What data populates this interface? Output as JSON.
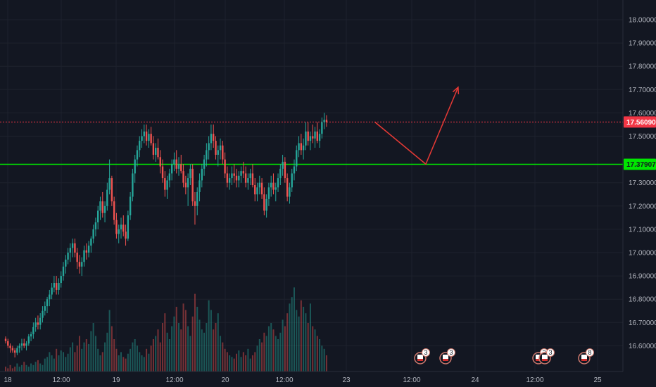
{
  "chart_data": {
    "type": "candlestick",
    "y_axis": {
      "ticks": [
        "18.00000",
        "17.90000",
        "17.80000",
        "17.70000",
        "17.60000",
        "17.50000",
        "17.30000",
        "17.20000",
        "17.10000",
        "17.00000",
        "16.90000",
        "16.80000",
        "16.70000",
        "16.60000"
      ],
      "range": [
        16.54,
        18.05
      ],
      "position": "right"
    },
    "x_axis": {
      "ticks": [
        "18",
        "12:00",
        "19",
        "12:00",
        "20",
        "12:00",
        "23",
        "12:00",
        "24",
        "12:00",
        "25"
      ]
    },
    "price_labels": [
      {
        "value": "17.56090",
        "price": 17.5609,
        "color": "#f23645"
      },
      {
        "value": "17.37907",
        "price": 17.37907,
        "color": "#00e600"
      }
    ],
    "horizontal_lines": [
      {
        "price": 17.5609,
        "style": "dotted",
        "color": "#f23645"
      },
      {
        "price": 17.37907,
        "style": "solid",
        "color": "#00e600"
      }
    ],
    "projection_path": [
      {
        "slot": 160,
        "price": 17.56
      },
      {
        "slot": 182,
        "price": 17.38
      },
      {
        "slot": 196,
        "price": 17.71
      }
    ],
    "candles_approx": [
      [
        0,
        16.63,
        16.64,
        16.61,
        16.62
      ],
      [
        1,
        16.62,
        16.63,
        16.59,
        16.6
      ],
      [
        2,
        16.6,
        16.61,
        16.57,
        16.59
      ],
      [
        3,
        16.59,
        16.6,
        16.57,
        16.58
      ],
      [
        4,
        16.58,
        16.59,
        16.55,
        16.57
      ],
      [
        5,
        16.57,
        16.6,
        16.56,
        16.59
      ],
      [
        6,
        16.59,
        16.61,
        16.57,
        16.6
      ],
      [
        7,
        16.6,
        16.63,
        16.58,
        16.61
      ],
      [
        8,
        16.61,
        16.63,
        16.59,
        16.6
      ],
      [
        9,
        16.6,
        16.62,
        16.58,
        16.61
      ],
      [
        10,
        16.61,
        16.65,
        16.6,
        16.64
      ],
      [
        11,
        16.64,
        16.66,
        16.62,
        16.65
      ],
      [
        12,
        16.65,
        16.7,
        16.63,
        16.68
      ],
      [
        13,
        16.68,
        16.72,
        16.66,
        16.7
      ],
      [
        14,
        16.7,
        16.73,
        16.67,
        16.69
      ],
      [
        15,
        16.69,
        16.74,
        16.67,
        16.72
      ],
      [
        16,
        16.72,
        16.77,
        16.7,
        16.75
      ],
      [
        17,
        16.75,
        16.79,
        16.73,
        16.77
      ],
      [
        18,
        16.77,
        16.81,
        16.74,
        16.8
      ],
      [
        19,
        16.8,
        16.84,
        16.77,
        16.82
      ],
      [
        20,
        16.82,
        16.87,
        16.8,
        16.85
      ],
      [
        21,
        16.85,
        16.9,
        16.83,
        16.87
      ],
      [
        22,
        16.87,
        16.9,
        16.82,
        16.84
      ],
      [
        23,
        16.84,
        16.89,
        16.82,
        16.87
      ],
      [
        24,
        16.87,
        16.92,
        16.85,
        16.9
      ],
      [
        25,
        16.9,
        16.96,
        16.88,
        16.94
      ],
      [
        26,
        16.94,
        16.99,
        16.91,
        16.97
      ],
      [
        27,
        16.97,
        17.02,
        16.95,
        17.0
      ],
      [
        28,
        17.0,
        17.04,
        16.96,
        17.02
      ],
      [
        29,
        17.02,
        17.06,
        16.98,
        17.04
      ],
      [
        30,
        17.04,
        17.06,
        16.98,
        17.0
      ],
      [
        31,
        17.0,
        17.02,
        16.93,
        16.96
      ],
      [
        32,
        16.96,
        16.99,
        16.91,
        16.94
      ],
      [
        33,
        16.94,
        16.98,
        16.9,
        16.96
      ],
      [
        34,
        16.96,
        17.03,
        16.94,
        17.01
      ],
      [
        35,
        17.01,
        17.04,
        16.97,
        17.0
      ],
      [
        36,
        17.0,
        17.05,
        16.98,
        17.03
      ],
      [
        37,
        17.03,
        17.07,
        17.0,
        17.06
      ],
      [
        38,
        17.06,
        17.12,
        17.04,
        17.1
      ],
      [
        39,
        17.1,
        17.15,
        17.07,
        17.13
      ],
      [
        40,
        17.13,
        17.2,
        17.1,
        17.18
      ],
      [
        41,
        17.18,
        17.24,
        17.14,
        17.22
      ],
      [
        42,
        17.22,
        17.26,
        17.15,
        17.17
      ],
      [
        43,
        17.17,
        17.22,
        17.13,
        17.2
      ],
      [
        44,
        17.2,
        17.3,
        17.18,
        17.27
      ],
      [
        45,
        17.27,
        17.4,
        17.25,
        17.32
      ],
      [
        46,
        17.32,
        17.33,
        17.2,
        17.22
      ],
      [
        47,
        17.22,
        17.24,
        17.12,
        17.14
      ],
      [
        48,
        17.14,
        17.17,
        17.06,
        17.08
      ],
      [
        49,
        17.08,
        17.12,
        17.04,
        17.1
      ],
      [
        50,
        17.1,
        17.15,
        17.06,
        17.12
      ],
      [
        51,
        17.12,
        17.16,
        17.07,
        17.09
      ],
      [
        52,
        17.09,
        17.12,
        17.03,
        17.06
      ],
      [
        53,
        17.06,
        17.18,
        17.05,
        17.16
      ],
      [
        54,
        17.16,
        17.26,
        17.14,
        17.24
      ],
      [
        55,
        17.24,
        17.36,
        17.22,
        17.34
      ],
      [
        56,
        17.34,
        17.42,
        17.3,
        17.4
      ],
      [
        57,
        17.4,
        17.46,
        17.37,
        17.44
      ],
      [
        58,
        17.44,
        17.5,
        17.41,
        17.48
      ],
      [
        59,
        17.48,
        17.53,
        17.45,
        17.5
      ],
      [
        60,
        17.5,
        17.55,
        17.47,
        17.52
      ],
      [
        61,
        17.52,
        17.55,
        17.46,
        17.48
      ],
      [
        62,
        17.48,
        17.53,
        17.45,
        17.51
      ],
      [
        63,
        17.51,
        17.54,
        17.46,
        17.47
      ],
      [
        64,
        17.47,
        17.5,
        17.4,
        17.42
      ],
      [
        65,
        17.42,
        17.47,
        17.39,
        17.45
      ],
      [
        66,
        17.45,
        17.49,
        17.4,
        17.41
      ],
      [
        67,
        17.41,
        17.44,
        17.34,
        17.37
      ],
      [
        68,
        17.37,
        17.4,
        17.3,
        17.32
      ],
      [
        69,
        17.32,
        17.35,
        17.24,
        17.27
      ],
      [
        70,
        17.27,
        17.33,
        17.23,
        17.31
      ],
      [
        71,
        17.31,
        17.36,
        17.28,
        17.34
      ],
      [
        72,
        17.34,
        17.4,
        17.31,
        17.38
      ],
      [
        73,
        17.38,
        17.43,
        17.35,
        17.4
      ],
      [
        74,
        17.4,
        17.44,
        17.34,
        17.36
      ],
      [
        75,
        17.36,
        17.41,
        17.33,
        17.38
      ],
      [
        76,
        17.38,
        17.42,
        17.34,
        17.35
      ],
      [
        77,
        17.35,
        17.38,
        17.28,
        17.3
      ],
      [
        78,
        17.3,
        17.33,
        17.25,
        17.28
      ],
      [
        79,
        17.28,
        17.34,
        17.2,
        17.32
      ],
      [
        80,
        17.32,
        17.38,
        17.29,
        17.36
      ],
      [
        81,
        17.36,
        17.38,
        17.2,
        17.22
      ],
      [
        82,
        17.22,
        17.26,
        17.12,
        17.2
      ],
      [
        83,
        17.2,
        17.28,
        17.16,
        17.26
      ],
      [
        84,
        17.26,
        17.34,
        17.22,
        17.31
      ],
      [
        85,
        17.31,
        17.38,
        17.28,
        17.36
      ],
      [
        86,
        17.36,
        17.42,
        17.33,
        17.4
      ],
      [
        87,
        17.4,
        17.47,
        17.37,
        17.44
      ],
      [
        88,
        17.44,
        17.5,
        17.4,
        17.47
      ],
      [
        89,
        17.47,
        17.55,
        17.44,
        17.51
      ],
      [
        90,
        17.51,
        17.55,
        17.45,
        17.48
      ],
      [
        91,
        17.48,
        17.5,
        17.4,
        17.42
      ],
      [
        92,
        17.42,
        17.46,
        17.37,
        17.44
      ],
      [
        93,
        17.44,
        17.49,
        17.4,
        17.46
      ],
      [
        94,
        17.46,
        17.48,
        17.38,
        17.4
      ],
      [
        95,
        17.4,
        17.43,
        17.32,
        17.34
      ],
      [
        96,
        17.34,
        17.37,
        17.28,
        17.3
      ],
      [
        97,
        17.3,
        17.34,
        17.27,
        17.32
      ],
      [
        98,
        17.32,
        17.37,
        17.29,
        17.34
      ],
      [
        99,
        17.34,
        17.38,
        17.3,
        17.33
      ],
      [
        100,
        17.33,
        17.36,
        17.28,
        17.31
      ],
      [
        101,
        17.31,
        17.35,
        17.28,
        17.33
      ],
      [
        102,
        17.33,
        17.37,
        17.3,
        17.35
      ],
      [
        103,
        17.35,
        17.39,
        17.32,
        17.34
      ],
      [
        104,
        17.34,
        17.37,
        17.28,
        17.3
      ],
      [
        105,
        17.3,
        17.34,
        17.27,
        17.32
      ],
      [
        106,
        17.32,
        17.36,
        17.29,
        17.34
      ],
      [
        107,
        17.34,
        17.38,
        17.28,
        17.29
      ],
      [
        108,
        17.29,
        17.32,
        17.22,
        17.25
      ],
      [
        109,
        17.25,
        17.3,
        17.22,
        17.28
      ],
      [
        110,
        17.28,
        17.33,
        17.25,
        17.3
      ],
      [
        111,
        17.3,
        17.32,
        17.23,
        17.25
      ],
      [
        112,
        17.25,
        17.28,
        17.16,
        17.18
      ],
      [
        113,
        17.18,
        17.25,
        17.15,
        17.23
      ],
      [
        114,
        17.23,
        17.3,
        17.2,
        17.28
      ],
      [
        115,
        17.28,
        17.33,
        17.24,
        17.3
      ],
      [
        116,
        17.3,
        17.34,
        17.25,
        17.27
      ],
      [
        117,
        17.27,
        17.3,
        17.22,
        17.28
      ],
      [
        118,
        17.28,
        17.34,
        17.26,
        17.32
      ],
      [
        119,
        17.32,
        17.38,
        17.29,
        17.36
      ],
      [
        120,
        17.36,
        17.42,
        17.33,
        17.39
      ],
      [
        121,
        17.39,
        17.41,
        17.3,
        17.32
      ],
      [
        122,
        17.32,
        17.34,
        17.22,
        17.24
      ],
      [
        123,
        17.24,
        17.3,
        17.21,
        17.28
      ],
      [
        124,
        17.28,
        17.36,
        17.26,
        17.34
      ],
      [
        125,
        17.34,
        17.4,
        17.31,
        17.37
      ],
      [
        126,
        17.37,
        17.46,
        17.35,
        17.44
      ],
      [
        127,
        17.44,
        17.5,
        17.41,
        17.47
      ],
      [
        128,
        17.47,
        17.51,
        17.42,
        17.44
      ],
      [
        129,
        17.44,
        17.49,
        17.4,
        17.46
      ],
      [
        130,
        17.46,
        17.56,
        17.44,
        17.52
      ],
      [
        131,
        17.52,
        17.56,
        17.46,
        17.48
      ],
      [
        132,
        17.48,
        17.52,
        17.44,
        17.5
      ],
      [
        133,
        17.5,
        17.55,
        17.47,
        17.49
      ],
      [
        134,
        17.49,
        17.54,
        17.45,
        17.52
      ],
      [
        135,
        17.52,
        17.56,
        17.47,
        17.48
      ],
      [
        136,
        17.48,
        17.53,
        17.45,
        17.51
      ],
      [
        137,
        17.51,
        17.58,
        17.49,
        17.56
      ],
      [
        138,
        17.56,
        17.6,
        17.53,
        17.57
      ],
      [
        139,
        17.57,
        17.59,
        17.54,
        17.56
      ]
    ],
    "volume_approx": [
      3,
      2,
      4,
      2,
      3,
      5,
      3,
      4,
      6,
      4,
      3,
      5,
      4,
      6,
      7,
      5,
      4,
      8,
      9,
      12,
      10,
      8,
      14,
      10,
      13,
      12,
      9,
      11,
      15,
      18,
      12,
      16,
      22,
      14,
      18,
      20,
      17,
      25,
      30,
      22,
      14,
      10,
      12,
      18,
      24,
      38,
      28,
      20,
      14,
      10,
      12,
      9,
      8,
      11,
      14,
      18,
      20,
      16,
      12,
      10,
      9,
      14,
      11,
      16,
      20,
      22,
      26,
      18,
      30,
      36,
      24,
      20,
      28,
      34,
      40,
      30,
      26,
      42,
      38,
      28,
      22,
      34,
      48,
      40,
      32,
      26,
      24,
      30,
      44,
      38,
      26,
      30,
      36,
      22,
      18,
      14,
      12,
      10,
      9,
      8,
      11,
      13,
      9,
      12,
      10,
      14,
      8,
      10,
      12,
      16,
      20,
      18,
      24,
      22,
      28,
      30,
      26,
      22,
      20,
      24,
      32,
      28,
      36,
      42,
      46,
      52,
      38,
      34,
      44,
      40,
      36,
      30,
      42,
      28,
      26,
      22,
      20,
      16,
      14,
      10
    ]
  },
  "events": [
    {
      "label": "3"
    },
    {
      "label": "3"
    },
    {
      "label": "2"
    },
    {
      "label": "3"
    },
    {
      "label": "8"
    }
  ]
}
